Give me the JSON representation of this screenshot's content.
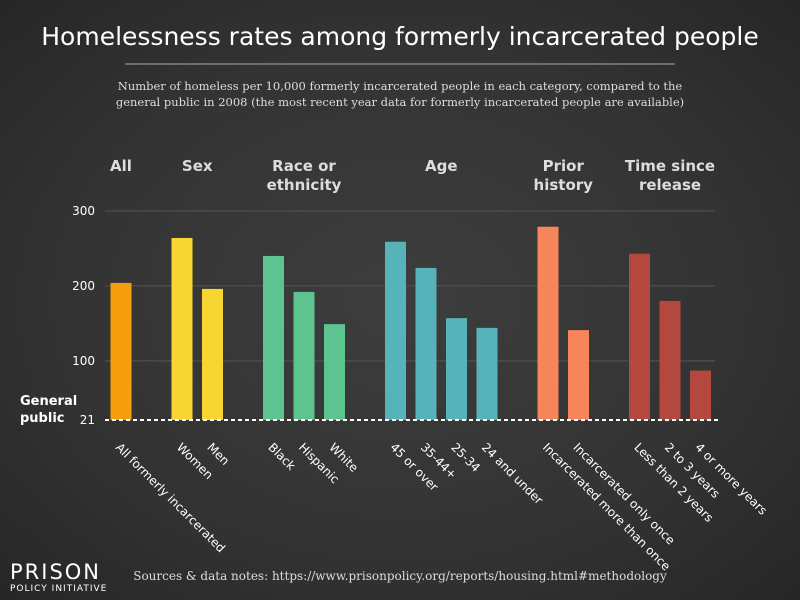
{
  "chart_data": {
    "type": "bar",
    "title": "Homelessness rates among formerly incarcerated people",
    "subtitle": "Number of homeless per 10,000 formerly incarcerated people in each category, compared to the general public in 2008 (the most recent year data for formerly incarcerated people are available)",
    "ylim": [
      21,
      300
    ],
    "yticks": [
      21,
      100,
      200,
      300
    ],
    "grid": true,
    "reference": {
      "label": "General public",
      "value": 21
    },
    "groups": [
      {
        "name": "All",
        "color": "#f59f0e",
        "categories": [
          "All formerly incarcerated"
        ],
        "values": [
          204
        ]
      },
      {
        "name": "Sex",
        "color": "#f7d631",
        "categories": [
          "Women",
          "Men"
        ],
        "values": [
          264,
          196
        ]
      },
      {
        "name": "Race or ethnicity",
        "color": "#5dc48f",
        "categories": [
          "Black",
          "Hispanic",
          "White"
        ],
        "values": [
          240,
          192,
          149
        ]
      },
      {
        "name": "Age",
        "color": "#56b3b9",
        "categories": [
          "45 or over",
          "35-44+",
          "25-34",
          "24 and under"
        ],
        "values": [
          259,
          224,
          157,
          144
        ]
      },
      {
        "name": "Prior history",
        "color": "#f6855b",
        "categories": [
          "Incarcerated more than once",
          "Incarcerated only once"
        ],
        "values": [
          279,
          141
        ]
      },
      {
        "name": "Time since release",
        "color": "#b4483f",
        "categories": [
          "Less than 2 years",
          "2 to 3 years",
          "4 or more years"
        ],
        "values": [
          243,
          180,
          87
        ]
      }
    ],
    "source": "Sources & data notes: https://www.prisonpolicy.org/reports/housing.html#methodology",
    "logo": {
      "line1": "PRISON",
      "line2": "POLICY INITIATIVE"
    }
  }
}
